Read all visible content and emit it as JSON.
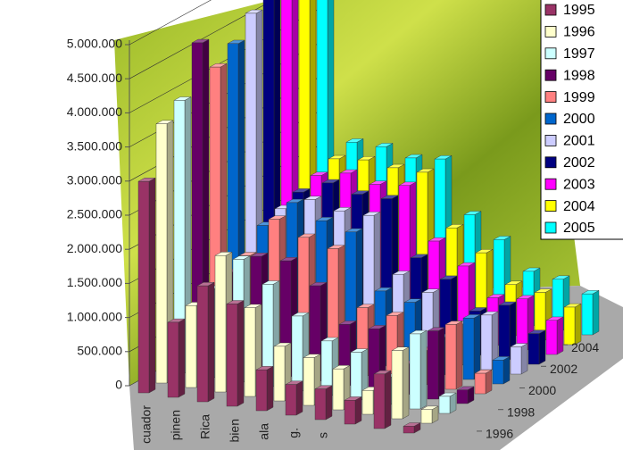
{
  "chart_data": {
    "type": "bar3d",
    "categories": [
      "cuador",
      "pinen",
      "Rica",
      "bien",
      "ala",
      "g.",
      "s",
      null,
      null,
      null
    ],
    "series": [
      {
        "name": "1995",
        "color": "#993366",
        "values": [
          3100000,
          1100000,
          1700000,
          1500000,
          600000,
          450000,
          450000,
          350000,
          800000,
          100000
        ]
      },
      {
        "name": "1996",
        "color": "#ffffcc",
        "values": [
          3800000,
          1200000,
          2000000,
          1300000,
          800000,
          700000,
          600000,
          350000,
          1000000,
          200000
        ]
      },
      {
        "name": "1997",
        "color": "#ccffff",
        "values": [
          4000000,
          1300000,
          1800000,
          1500000,
          1100000,
          800000,
          700000,
          400000,
          1100000,
          250000
        ]
      },
      {
        "name": "1998",
        "color": "#660066",
        "values": [
          4700000,
          1400000,
          1700000,
          1700000,
          1400000,
          900000,
          900000,
          450000,
          1000000,
          200000
        ]
      },
      {
        "name": "1999",
        "color": "#ff8080",
        "values": [
          4200000,
          1500000,
          2100000,
          1900000,
          1800000,
          1000000,
          950000,
          500000,
          950000,
          300000
        ]
      },
      {
        "name": "2000",
        "color": "#0066cc",
        "values": [
          4400000,
          1800000,
          2200000,
          2000000,
          1900000,
          1100000,
          1000000,
          550000,
          900000,
          350000
        ]
      },
      {
        "name": "2001",
        "color": "#ccccff",
        "values": [
          4700000,
          1900000,
          2100000,
          2000000,
          2000000,
          1200000,
          1000000,
          600000,
          800000,
          400000
        ]
      },
      {
        "name": "2002",
        "color": "#000080",
        "values": [
          4900000,
          2000000,
          2200000,
          2100000,
          2100000,
          1300000,
          1050000,
          650000,
          800000,
          450000
        ]
      },
      {
        "name": "2003",
        "color": "#ff00ff",
        "values": [
          6000000,
          2100000,
          2200000,
          2100000,
          2150000,
          1400000,
          1100000,
          700000,
          750000,
          500000
        ]
      },
      {
        "name": "2004",
        "color": "#ffff00",
        "values": [
          6200000,
          2200000,
          2250000,
          2200000,
          2200000,
          1450000,
          1150000,
          750000,
          700000,
          550000
        ]
      },
      {
        "name": "2005",
        "color": "#00ffff",
        "values": [
          6300000,
          2300000,
          2300000,
          2200000,
          2250000,
          1500000,
          1200000,
          800000,
          750000,
          600000
        ]
      }
    ],
    "ylim": [
      0,
      5000000
    ],
    "yticks": [
      {
        "value": 0,
        "label": "0"
      },
      {
        "value": 500000,
        "label": "500.000"
      },
      {
        "value": 1000000,
        "label": "1.000.000"
      },
      {
        "value": 1500000,
        "label": "1.500.000"
      },
      {
        "value": 2000000,
        "label": "2.000.000"
      },
      {
        "value": 2500000,
        "label": "2.500.000"
      },
      {
        "value": 3000000,
        "label": "3.000.000"
      },
      {
        "value": 3500000,
        "label": "3.500.000"
      },
      {
        "value": 4000000,
        "label": "4.000.000"
      },
      {
        "value": 4500000,
        "label": "4.500.000"
      },
      {
        "value": 5000000,
        "label": "5.000.000"
      }
    ],
    "zticks": [
      1994,
      1996,
      1998,
      2000,
      2002,
      2004
    ],
    "grid": true,
    "legend": "top-right"
  }
}
